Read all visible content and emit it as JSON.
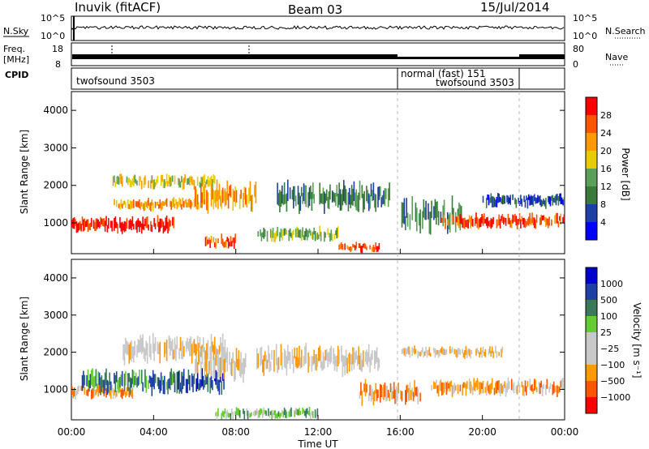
{
  "header": {
    "station": "Inuvik (fitACF)",
    "beam": "Beam 03",
    "date": "15/Jul/2014"
  },
  "meta_panels": {
    "sky_label": "N.Sky",
    "sky_ticks": [
      "10^5",
      "10^0"
    ],
    "search_label": "N.Search",
    "search_ticks": [
      "10^5",
      "10^0"
    ],
    "freq_label_1": "Freq.",
    "freq_label_2": "[MHz]",
    "freq_ticks": [
      "18",
      "8"
    ],
    "nave_label": "Nave",
    "nave_ticks": [
      "80",
      "0"
    ],
    "cpid_label": "CPID",
    "cpid_segments": [
      "twofsound 3503",
      "normal (fast) 151",
      "twofsound 3503"
    ]
  },
  "chart_data": [
    {
      "type": "heatmap",
      "panel": "power",
      "ylabel": "Slant Range [km]",
      "xlabel": "",
      "colorbar_label": "Power [dB]",
      "colorbar_ticks": [
        "28",
        "24",
        "20",
        "16",
        "12",
        "8",
        "4"
      ],
      "colors": [
        "#0000ff",
        "#1f3fa8",
        "#3a7a3a",
        "#5aa05a",
        "#e6cc00",
        "#ff9900",
        "#ff5500",
        "#ff0000"
      ],
      "x_ticks": [
        "00:00",
        "04:00",
        "08:00",
        "12:00",
        "16:00",
        "20:00",
        "00:00"
      ],
      "y_ticks": [
        "1000",
        "2000",
        "3000",
        "4000"
      ],
      "ylim": [
        180,
        4500
      ],
      "x_range_hours": [
        0,
        24
      ],
      "bands": [
        {
          "t_start": 0.0,
          "t_end": 5.0,
          "range_center": 950,
          "range_width": 350,
          "level": 7
        },
        {
          "t_start": 2.0,
          "t_end": 6.5,
          "range_center": 1500,
          "range_width": 250,
          "level": 5
        },
        {
          "t_start": 2.0,
          "t_end": 7.0,
          "range_center": 2100,
          "range_width": 300,
          "level": 4
        },
        {
          "t_start": 6.0,
          "t_end": 9.0,
          "range_center": 1700,
          "range_width": 600,
          "level": 5
        },
        {
          "t_start": 6.5,
          "t_end": 8.0,
          "range_center": 500,
          "range_width": 300,
          "level": 6
        },
        {
          "t_start": 9.0,
          "t_end": 13.0,
          "range_center": 700,
          "range_width": 300,
          "level": 3
        },
        {
          "t_start": 10.0,
          "t_end": 15.5,
          "range_center": 1700,
          "range_width": 600,
          "level": 2
        },
        {
          "t_start": 13.0,
          "t_end": 15.0,
          "range_center": 350,
          "range_width": 200,
          "level": 6
        },
        {
          "t_start": 16.0,
          "t_end": 19.0,
          "range_center": 1200,
          "range_width": 700,
          "level": 2
        },
        {
          "t_start": 18.0,
          "t_end": 24.0,
          "range_center": 1050,
          "range_width": 300,
          "level": 6
        },
        {
          "t_start": 20.0,
          "t_end": 24.0,
          "range_center": 1600,
          "range_width": 300,
          "level": 1
        }
      ]
    },
    {
      "type": "heatmap",
      "panel": "velocity",
      "ylabel": "Slant Range [km]",
      "xlabel": "Time UT",
      "colorbar_label": "Velocity [m s⁻¹]",
      "colorbar_ticks": [
        "1000",
        "500",
        "100",
        "25",
        "−25",
        "−100",
        "−500",
        "−1000"
      ],
      "colors": [
        "#ff0000",
        "#ff5500",
        "#ff9900",
        "#c8c8c8",
        "#c8c8c8",
        "#66cc33",
        "#3a7a5a",
        "#1f3fa8",
        "#0000cc"
      ],
      "x_ticks": [
        "00:00",
        "04:00",
        "08:00",
        "12:00",
        "16:00",
        "20:00",
        "00:00"
      ],
      "y_ticks": [
        "1000",
        "2000",
        "3000",
        "4000"
      ],
      "ylim": [
        180,
        4500
      ],
      "x_range_hours": [
        0,
        24
      ],
      "bands": [
        {
          "t_start": 0.0,
          "t_end": 3.0,
          "range_center": 950,
          "range_width": 300,
          "level": 2
        },
        {
          "t_start": 0.5,
          "t_end": 5.5,
          "range_center": 1200,
          "range_width": 500,
          "level": 6
        },
        {
          "t_start": 2.5,
          "t_end": 7.5,
          "range_center": 2100,
          "range_width": 600,
          "level": 3
        },
        {
          "t_start": 5.0,
          "t_end": 7.5,
          "range_center": 1200,
          "range_width": 500,
          "level": 7
        },
        {
          "t_start": 6.0,
          "t_end": 8.5,
          "range_center": 1700,
          "range_width": 700,
          "level": 3
        },
        {
          "t_start": 7.0,
          "t_end": 12.0,
          "range_center": 350,
          "range_width": 250,
          "level": 5
        },
        {
          "t_start": 9.0,
          "t_end": 15.0,
          "range_center": 1800,
          "range_width": 600,
          "level": 3
        },
        {
          "t_start": 14.0,
          "t_end": 17.0,
          "range_center": 900,
          "range_width": 500,
          "level": 2
        },
        {
          "t_start": 16.0,
          "t_end": 21.0,
          "range_center": 2000,
          "range_width": 250,
          "level": 3
        },
        {
          "t_start": 17.5,
          "t_end": 24.0,
          "range_center": 1050,
          "range_width": 350,
          "level": 2
        }
      ]
    }
  ]
}
